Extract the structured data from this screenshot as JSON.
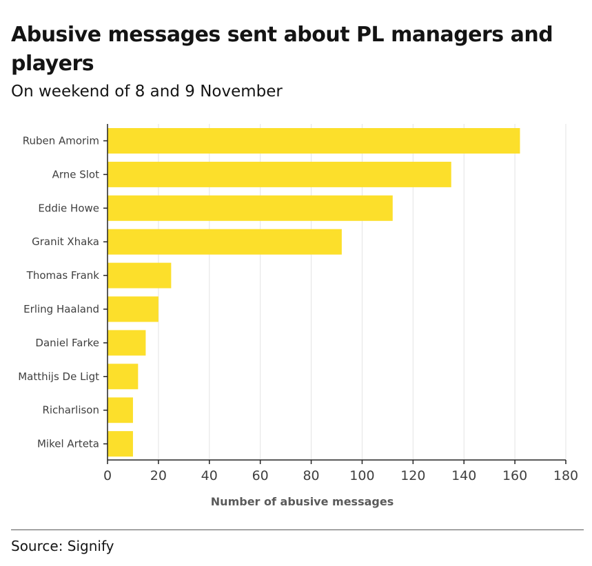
{
  "chart_data": {
    "type": "bar",
    "orientation": "horizontal",
    "title": "Abusive messages sent about PL managers and players",
    "subtitle": "On weekend of 8 and 9 November",
    "categories": [
      "Ruben Amorim",
      "Arne Slot",
      "Eddie Howe",
      "Granit Xhaka",
      "Thomas Frank",
      "Erling Haaland",
      "Daniel Farke",
      "Matthijs De Ligt",
      "Richarlison",
      "Mikel Arteta"
    ],
    "values": [
      162,
      135,
      112,
      92,
      25,
      20,
      15,
      12,
      10,
      10
    ],
    "xlabel": "Number of abusive messages",
    "ylabel": "",
    "xlim": [
      0,
      180
    ],
    "xticks": [
      "0",
      "20",
      "40",
      "60",
      "80",
      "100",
      "120",
      "140",
      "160",
      "180"
    ],
    "grid": "vertical",
    "bar_color": "#fcdf2b",
    "source": "Source: Signify"
  }
}
